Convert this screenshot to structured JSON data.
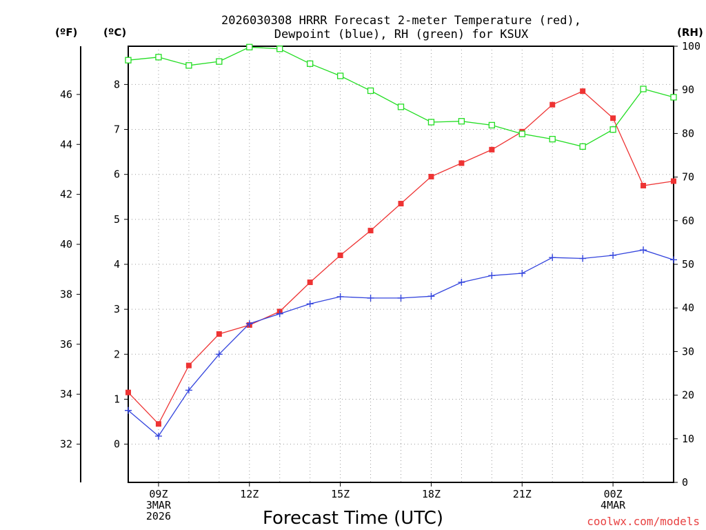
{
  "chart_data": {
    "type": "line",
    "title_lines": [
      "2026030308 HRRR Forecast 2-meter Temperature (red),",
      "Dewpoint (blue), RH (green) for KSUX"
    ],
    "xlabel": "Forecast Time (UTC)",
    "left_unit_f": "(ºF)",
    "left_unit_c": "(ºC)",
    "right_unit": "(RH)",
    "credit": "coolwx.com/models",
    "x_hours": [
      8,
      9,
      10,
      11,
      12,
      13,
      14,
      15,
      16,
      17,
      18,
      19,
      20,
      21,
      22,
      23,
      24,
      25,
      26
    ],
    "xlim": [
      8,
      26
    ],
    "x_ticks": [
      {
        "hour": 9,
        "lines": [
          "09Z",
          "3MAR",
          "2026"
        ]
      },
      {
        "hour": 12,
        "lines": [
          "12Z"
        ]
      },
      {
        "hour": 15,
        "lines": [
          "15Z"
        ]
      },
      {
        "hour": 18,
        "lines": [
          "18Z"
        ]
      },
      {
        "hour": 21,
        "lines": [
          "21Z"
        ]
      },
      {
        "hour": 24,
        "lines": [
          "00Z",
          "4MAR"
        ]
      }
    ],
    "c_axis": {
      "ylim": [
        -0.85,
        8.85
      ],
      "ticks": [
        0,
        1,
        2,
        3,
        4,
        5,
        6,
        7,
        8
      ]
    },
    "f_axis": {
      "ticks": [
        32,
        34,
        36,
        38,
        40,
        42,
        44,
        46
      ]
    },
    "rh_axis": {
      "ylim": [
        0,
        100
      ],
      "ticks": [
        0,
        10,
        20,
        30,
        40,
        50,
        60,
        70,
        80,
        90,
        100
      ]
    },
    "series": [
      {
        "name": "Temperature",
        "axis": "c",
        "color": "#ee3333",
        "marker": "filled-square",
        "values": [
          1.15,
          0.45,
          1.75,
          2.45,
          2.65,
          2.95,
          3.6,
          4.2,
          4.75,
          5.35,
          5.95,
          6.25,
          6.55,
          6.95,
          7.55,
          7.85,
          7.25,
          5.75,
          5.85
        ]
      },
      {
        "name": "Dewpoint",
        "axis": "c",
        "color": "#3344dd",
        "marker": "plus",
        "values": [
          0.75,
          0.18,
          1.2,
          2.0,
          2.68,
          2.9,
          3.12,
          3.28,
          3.25,
          3.25,
          3.29,
          3.6,
          3.75,
          3.8,
          4.15,
          4.13,
          4.2,
          4.32,
          4.1
        ]
      },
      {
        "name": "RH",
        "axis": "rh",
        "color": "#22dd22",
        "marker": "open-square",
        "values": [
          96.8,
          97.5,
          95.6,
          96.5,
          99.8,
          99.4,
          96.0,
          93.2,
          89.8,
          86.1,
          82.6,
          82.8,
          81.9,
          79.9,
          78.7,
          77.0,
          80.9,
          90.2,
          88.3
        ]
      }
    ]
  }
}
